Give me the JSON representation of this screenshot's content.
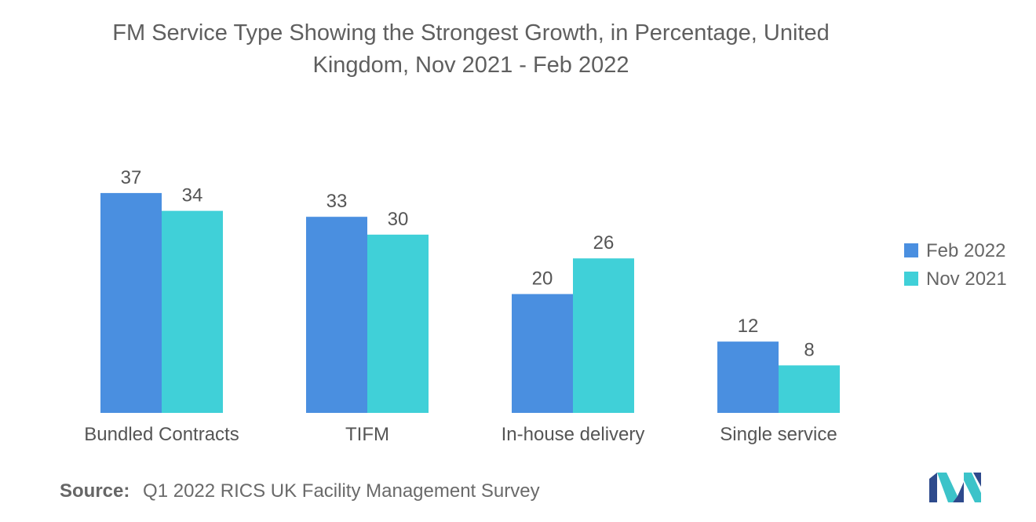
{
  "title_lines": [
    "FM Service Type Showing the Strongest Growth, in Percentage, United",
    "Kingdom, Nov 2021 - Feb 2022"
  ],
  "source": {
    "label": "Source:",
    "text": "Q1 2022 RICS UK Facility Management Survey"
  },
  "logo": {
    "icon": "mordor-intelligence-logo-icon",
    "colors": [
      "#2e4a8c",
      "#3cc3c9"
    ]
  },
  "chart_data": {
    "type": "bar",
    "title": "FM Service Type Showing the Strongest Growth, in Percentage, United Kingdom, Nov 2021 - Feb 2022",
    "categories": [
      "Bundled Contracts",
      "TIFM",
      "In-house delivery",
      "Single service"
    ],
    "series": [
      {
        "name": "Feb 2022",
        "color": "#4a8fe0",
        "values": [
          37,
          33,
          20,
          12
        ]
      },
      {
        "name": "Nov 2021",
        "color": "#40d0d8",
        "values": [
          34,
          30,
          26,
          8
        ]
      }
    ],
    "xlabel": "",
    "ylabel": "",
    "ylim": [
      0,
      40
    ],
    "grid": false,
    "legend": "right",
    "data_labels": true
  }
}
